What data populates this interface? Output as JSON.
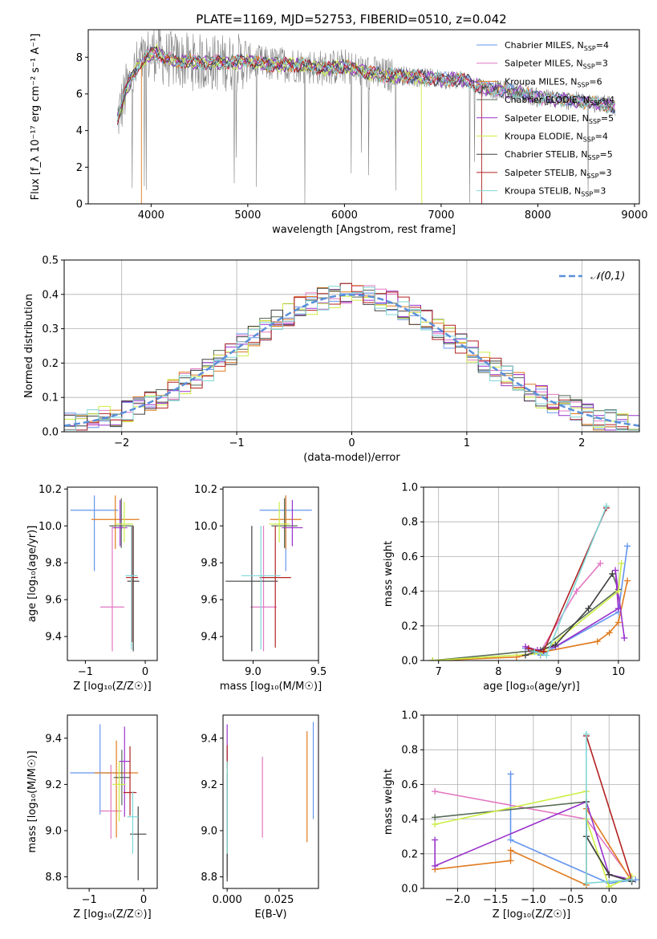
{
  "figure": {
    "title": "PLATE=1169, MJD=52753, FIBERID=0510, z=0.042"
  },
  "colors": {
    "Chabrier MILES": "#6495ed",
    "Salpeter MILES": "#e377c2",
    "Kroupa MILES": "#e07b1f",
    "Chabrier ELODIE": "#556b55",
    "Salpeter ELODIE": "#9932cc",
    "Kroupa ELODIE": "#ccee44",
    "Chabrier STELIB": "#404040",
    "Salpeter STELIB": "#b22222",
    "Kroupa STELIB": "#7fd6d6",
    "data": "#808080",
    "normal": "#5b8fd9"
  },
  "chart_data": [
    {
      "id": "spectrum",
      "type": "line",
      "xlabel": "wavelength [Angstrom, rest frame]",
      "ylabel": "Flux [f_λ 10⁻¹⁷ erg cm⁻² s⁻¹ A⁻¹]",
      "xlim": [
        3350,
        9050
      ],
      "ylim": [
        0,
        9.5
      ],
      "xticks": [
        4000,
        5000,
        6000,
        7000,
        8000,
        9000
      ],
      "yticks": [
        0,
        2,
        4,
        6,
        8
      ],
      "grid": false,
      "legend_position": "upper-right",
      "continuum": {
        "x": [
          3650,
          3750,
          3850,
          3950,
          4050,
          4150,
          4300,
          4500,
          4800,
          5000,
          5200,
          5500,
          5800,
          6000,
          6200,
          6400,
          6600,
          6800,
          7000,
          7200,
          7400,
          7600,
          7800,
          8000,
          8200,
          8400,
          8600,
          8800
        ],
        "y": [
          4.6,
          6.3,
          7.4,
          8.0,
          8.3,
          7.9,
          7.8,
          7.7,
          7.7,
          7.8,
          7.6,
          7.6,
          7.4,
          7.5,
          7.2,
          7.0,
          7.0,
          6.9,
          6.8,
          6.8,
          6.4,
          6.2,
          6.1,
          5.8,
          5.7,
          5.6,
          5.5,
          5.3
        ]
      },
      "series": [
        {
          "name": "Chabrier MILES",
          "nssp": "4"
        },
        {
          "name": "Salpeter MILES",
          "nssp": "3"
        },
        {
          "name": "Kroupa MILES",
          "nssp": "6"
        },
        {
          "name": "Chabrier ELODIE",
          "nssp": "4"
        },
        {
          "name": "Salpeter ELODIE",
          "nssp": "5"
        },
        {
          "name": "Kroupa ELODIE",
          "nssp": "4"
        },
        {
          "name": "Chabrier STELIB",
          "nssp": "5"
        },
        {
          "name": "Salpeter STELIB",
          "nssp": "3"
        },
        {
          "name": "Kroupa STELIB",
          "nssp": "3"
        }
      ]
    },
    {
      "id": "residuals",
      "type": "line",
      "xlabel": "(data-model)/error",
      "ylabel": "Normed distribution",
      "xlim": [
        -2.5,
        2.5
      ],
      "ylim": [
        0,
        0.5
      ],
      "xticks": [
        -2,
        -1,
        0,
        1,
        2
      ],
      "yticks": [
        0.0,
        0.1,
        0.2,
        0.3,
        0.4,
        0.5
      ],
      "grid": true,
      "legend_position": "upper-right",
      "legend_label": "𝒩(0,1)"
    },
    {
      "id": "age_vs_Z",
      "type": "scatter",
      "xlabel": "Z [log₁₀(Z/Z☉)]",
      "ylabel": "age  [log₁₀(age/yr)]",
      "xlim": [
        -1.3,
        0.2
      ],
      "ylim": [
        9.27,
        10.21
      ],
      "xticks": [
        -1,
        0
      ],
      "yticks": [
        9.4,
        9.6,
        9.8,
        10.0,
        10.2
      ],
      "points": [
        {
          "s": "Chabrier MILES",
          "x": -0.85,
          "y": 10.085,
          "xe": 0.4,
          "ye": [
            0.33,
            0.08
          ]
        },
        {
          "s": "Salpeter MILES",
          "x": -0.55,
          "y": 9.56,
          "xe": 0.2,
          "ye": [
            0.24,
            0.44
          ]
        },
        {
          "s": "Kroupa MILES",
          "x": -0.5,
          "y": 10.035,
          "xe": 0.4,
          "ye": [
            0.16,
            0.13
          ]
        },
        {
          "s": "Chabrier ELODIE",
          "x": -0.4,
          "y": 10.0,
          "xe": 0.2,
          "ye": [
            0.12,
            0.15
          ]
        },
        {
          "s": "Salpeter ELODIE",
          "x": -0.42,
          "y": 9.99,
          "xe": 0.12,
          "ye": [
            0.1,
            0.15
          ]
        },
        {
          "s": "Kroupa ELODIE",
          "x": -0.35,
          "y": 10.01,
          "xe": 0.15,
          "ye": [
            0.1,
            0.12
          ]
        },
        {
          "s": "Chabrier STELIB",
          "x": -0.2,
          "y": 9.7,
          "xe": 0.1,
          "ye": [
            0.38,
            0.3
          ]
        },
        {
          "s": "Salpeter STELIB",
          "x": -0.22,
          "y": 9.72,
          "xe": 0.1,
          "ye": [
            0.35,
            0.28
          ]
        },
        {
          "s": "Kroupa STELIB",
          "x": -0.23,
          "y": 9.73,
          "xe": 0.1,
          "ye": [
            0.4,
            0.27
          ]
        }
      ]
    },
    {
      "id": "age_vs_mass",
      "type": "scatter",
      "xlabel": "mass [log₁₀(M/M☉)]",
      "ylabel": "",
      "xlim": [
        8.77,
        9.5
      ],
      "ylim": [
        9.27,
        10.21
      ],
      "xticks": [
        9.0,
        9.5
      ],
      "yticks": [
        9.4,
        9.6,
        9.8,
        10.0,
        10.2
      ],
      "points": [
        {
          "s": "Chabrier MILES",
          "x": 9.25,
          "y": 10.085,
          "xe": 0.2,
          "ye": [
            0.33,
            0.08
          ]
        },
        {
          "s": "Salpeter MILES",
          "x": 9.08,
          "y": 9.56,
          "xe": 0.1,
          "ye": [
            0.24,
            0.44
          ]
        },
        {
          "s": "Kroupa MILES",
          "x": 9.25,
          "y": 10.035,
          "xe": 0.12,
          "ye": [
            0.16,
            0.13
          ]
        },
        {
          "s": "Chabrier ELODIE",
          "x": 9.24,
          "y": 10.0,
          "xe": 0.1,
          "ye": [
            0.12,
            0.15
          ]
        },
        {
          "s": "Salpeter ELODIE",
          "x": 9.3,
          "y": 9.99,
          "xe": 0.08,
          "ye": [
            0.1,
            0.15
          ]
        },
        {
          "s": "Kroupa ELODIE",
          "x": 9.2,
          "y": 10.01,
          "xe": 0.08,
          "ye": [
            0.1,
            0.12
          ]
        },
        {
          "s": "Chabrier STELIB",
          "x": 8.99,
          "y": 9.7,
          "xe": 0.2,
          "ye": [
            0.38,
            0.3
          ]
        },
        {
          "s": "Salpeter STELIB",
          "x": 9.17,
          "y": 9.72,
          "xe": 0.12,
          "ye": [
            0.38,
            0.28
          ]
        },
        {
          "s": "Kroupa STELIB",
          "x": 9.06,
          "y": 9.73,
          "xe": 0.15,
          "ye": [
            0.4,
            0.27
          ]
        }
      ]
    },
    {
      "id": "weight_vs_age",
      "type": "line",
      "xlabel": "age  [log₁₀(age/yr)]",
      "ylabel": "mass weight",
      "xlim": [
        6.75,
        10.35
      ],
      "ylim": [
        0,
        1
      ],
      "xticks": [
        7,
        8,
        9,
        10
      ],
      "yticks": [
        0.0,
        0.2,
        0.4,
        0.6,
        0.8,
        1.0
      ],
      "grid": true,
      "series": [
        {
          "s": "Chabrier MILES",
          "x": [
            8.45,
            8.7,
            10.0,
            10.15
          ],
          "y": [
            0.07,
            0.03,
            0.28,
            0.66
          ]
        },
        {
          "s": "Salpeter MILES",
          "x": [
            8.55,
            8.7,
            9.3,
            9.7
          ],
          "y": [
            0.05,
            0.05,
            0.4,
            0.56
          ]
        },
        {
          "s": "Kroupa MILES",
          "x": [
            6.9,
            8.3,
            9.65,
            9.85,
            10.0,
            10.15
          ],
          "y": [
            0.0,
            0.02,
            0.11,
            0.16,
            0.22,
            0.46
          ]
        },
        {
          "s": "Chabrier ELODIE",
          "x": [
            6.9,
            8.7,
            10.0,
            9.9
          ],
          "y": [
            0.0,
            0.06,
            0.41,
            0.5
          ]
        },
        {
          "s": "Salpeter ELODIE",
          "x": [
            8.45,
            8.65,
            8.95,
            10.0,
            9.95,
            10.1
          ],
          "y": [
            0.08,
            0.06,
            0.08,
            0.3,
            0.52,
            0.13
          ]
        },
        {
          "s": "Kroupa ELODIE",
          "x": [
            6.9,
            8.7,
            10.0,
            10.05
          ],
          "y": [
            0.0,
            0.04,
            0.4,
            0.56
          ]
        },
        {
          "s": "Chabrier STELIB",
          "x": [
            8.45,
            8.95,
            9.5,
            9.9
          ],
          "y": [
            0.03,
            0.09,
            0.3,
            0.5
          ]
        },
        {
          "s": "Salpeter STELIB",
          "x": [
            8.5,
            8.75,
            9.8
          ],
          "y": [
            0.07,
            0.05,
            0.88
          ]
        },
        {
          "s": "Kroupa STELIB",
          "x": [
            8.6,
            8.8,
            9.8
          ],
          "y": [
            0.05,
            0.03,
            0.89
          ]
        }
      ]
    },
    {
      "id": "mass_vs_Z",
      "type": "scatter",
      "xlabel": "Z [log₁₀(Z/Z☉)]",
      "ylabel": "mass [log₁₀(M/M☉)]",
      "xlim": [
        -1.4,
        0.25
      ],
      "ylim": [
        8.75,
        9.5
      ],
      "xticks": [
        -1,
        0
      ],
      "yticks": [
        8.8,
        9.0,
        9.2,
        9.4
      ],
      "points": [
        {
          "s": "Chabrier MILES",
          "x": -0.8,
          "y": 9.25,
          "xe": 0.55,
          "ye": [
            0.18,
            0.21
          ]
        },
        {
          "s": "Salpeter MILES",
          "x": -0.6,
          "y": 9.085,
          "xe": 0.2,
          "ye": [
            0.12,
            0.2
          ]
        },
        {
          "s": "Kroupa MILES",
          "x": -0.5,
          "y": 9.25,
          "xe": 0.4,
          "ye": [
            0.28,
            0.14
          ]
        },
        {
          "s": "Chabrier ELODIE",
          "x": -0.4,
          "y": 9.23,
          "xe": 0.15,
          "ye": [
            0.12,
            0.12
          ]
        },
        {
          "s": "Salpeter ELODIE",
          "x": -0.35,
          "y": 9.3,
          "xe": 0.1,
          "ye": [
            0.24,
            0.15
          ]
        },
        {
          "s": "Kroupa ELODIE",
          "x": -0.45,
          "y": 9.2,
          "xe": 0.12,
          "ye": [
            0.16,
            0.1
          ]
        },
        {
          "s": "Chabrier STELIB",
          "x": -0.1,
          "y": 8.985,
          "xe": 0.15,
          "ye": [
            0.2,
            0.12
          ]
        },
        {
          "s": "Salpeter STELIB",
          "x": -0.25,
          "y": 9.165,
          "xe": 0.12,
          "ye": [
            0.1,
            0.2
          ]
        },
        {
          "s": "Kroupa STELIB",
          "x": -0.2,
          "y": 9.06,
          "xe": 0.1,
          "ye": [
            0.16,
            0.11
          ]
        }
      ]
    },
    {
      "id": "mass_vs_ebv",
      "type": "scatter",
      "xlabel": "E(B-V)",
      "ylabel": "",
      "xlim": [
        -0.002,
        0.044
      ],
      "ylim": [
        8.75,
        9.5
      ],
      "xticks": [
        0.0,
        0.025
      ],
      "xticklabels": [
        "0.000",
        "0.025"
      ],
      "yticks": [
        8.8,
        9.0,
        9.2,
        9.4
      ],
      "points": [
        {
          "s": "Chabrier MILES",
          "x": 0.0415,
          "y": 9.25,
          "ye": [
            0.2,
            0.22
          ]
        },
        {
          "s": "Salpeter MILES",
          "x": 0.017,
          "y": 9.14,
          "ye": [
            0.17,
            0.18
          ]
        },
        {
          "s": "Kroupa MILES",
          "x": 0.0385,
          "y": 9.19,
          "ye": [
            0.24,
            0.24
          ]
        },
        {
          "s": "Chabrier ELODIE",
          "x": 0.0,
          "y": 9.1,
          "ye": [
            0.3,
            0.25
          ]
        },
        {
          "s": "Salpeter ELODIE",
          "x": 0.0,
          "y": 9.32,
          "ye": [
            0.1,
            0.14
          ]
        },
        {
          "s": "Kroupa ELODIE",
          "x": 0.0,
          "y": 9.1,
          "ye": [
            0.2,
            0.2
          ]
        },
        {
          "s": "Chabrier STELIB",
          "x": 0.0,
          "y": 9.05,
          "ye": [
            0.27,
            0.2
          ]
        },
        {
          "s": "Salpeter STELIB",
          "x": 0.0,
          "y": 9.33,
          "ye": [
            0.06,
            0.04
          ]
        },
        {
          "s": "Kroupa STELIB",
          "x": 0.0,
          "y": 9.1,
          "ye": [
            0.2,
            0.2
          ]
        }
      ]
    },
    {
      "id": "weight_vs_Z",
      "type": "line",
      "xlabel": "Z [log₁₀(Z/Z☉)]",
      "ylabel": "mass weight",
      "xlim": [
        -2.45,
        0.4
      ],
      "ylim": [
        0,
        1
      ],
      "xticks": [
        -2.0,
        -1.5,
        -1.0,
        -0.5,
        0.0
      ],
      "yticks": [
        0.0,
        0.2,
        0.4,
        0.6,
        0.8,
        1.0
      ],
      "grid": true,
      "series": [
        {
          "s": "Chabrier MILES",
          "x": [
            -1.3,
            -1.3,
            0.0,
            0.35
          ],
          "y": [
            0.66,
            0.28,
            0.03,
            0.05
          ]
        },
        {
          "s": "Salpeter MILES",
          "x": [
            -2.3,
            -0.3,
            0.3
          ],
          "y": [
            0.56,
            0.4,
            0.05
          ]
        },
        {
          "s": "Kroupa MILES",
          "x": [
            -2.3,
            -1.3,
            -1.3,
            -0.3,
            -0.3,
            0.3
          ],
          "y": [
            0.11,
            0.16,
            0.22,
            0.02,
            0.46,
            0.04
          ]
        },
        {
          "s": "Chabrier ELODIE",
          "x": [
            -2.3,
            -0.3,
            -0.3,
            0.0,
            0.3
          ],
          "y": [
            0.41,
            0.5,
            0.3,
            0.08,
            0.04
          ]
        },
        {
          "s": "Salpeter ELODIE",
          "x": [
            -2.3,
            -2.3,
            -0.3,
            0.0,
            0.3
          ],
          "y": [
            0.28,
            0.13,
            0.5,
            0.08,
            0.05
          ]
        },
        {
          "s": "Kroupa ELODIE",
          "x": [
            -2.3,
            -0.3,
            -0.3,
            0.0,
            0.3
          ],
          "y": [
            0.37,
            0.56,
            0.4,
            0.01,
            0.07
          ]
        },
        {
          "s": "Chabrier STELIB",
          "x": [
            -0.3,
            -0.3,
            0.0,
            0.3
          ],
          "y": [
            0.5,
            0.3,
            0.08,
            0.04
          ]
        },
        {
          "s": "Salpeter STELIB",
          "x": [
            -0.3,
            0.3
          ],
          "y": [
            0.88,
            0.05
          ]
        },
        {
          "s": "Kroupa STELIB",
          "x": [
            -0.3,
            -0.3,
            0.3
          ],
          "y": [
            0.89,
            0.03,
            0.05
          ]
        }
      ]
    }
  ]
}
